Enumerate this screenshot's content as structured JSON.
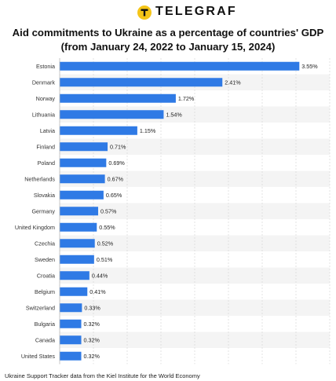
{
  "header": {
    "brand": "TELEGRAF",
    "brand_color": "#f5c518",
    "logo_icon": "telegraf-logo-icon"
  },
  "chart_data": {
    "type": "bar",
    "orientation": "horizontal",
    "title": "Aid commitments to Ukraine as a percentage of countries' GDP",
    "subtitle": "(from January 24, 2022 to January 15, 2024)",
    "xlabel": "",
    "ylabel": "",
    "categories": [
      "Estonia",
      "Denmark",
      "Norway",
      "Lithuania",
      "Latvia",
      "Finland",
      "Poland",
      "Netherlands",
      "Slovakia",
      "Germany",
      "United Kingdom",
      "Czechia",
      "Sweden",
      "Croatia",
      "Belgium",
      "Switzerland",
      "Bulgaria",
      "Canada",
      "United States"
    ],
    "values": [
      3.55,
      2.41,
      1.72,
      1.54,
      1.15,
      0.71,
      0.69,
      0.67,
      0.65,
      0.57,
      0.55,
      0.52,
      0.51,
      0.44,
      0.41,
      0.33,
      0.32,
      0.32,
      0.32
    ],
    "value_labels": [
      "3.55%",
      "2.41%",
      "1.72%",
      "1.54%",
      "1.15%",
      "0.71%",
      "0.69%",
      "0.67%",
      "0.65%",
      "0.57%",
      "0.55%",
      "0.52%",
      "0.51%",
      "0.44%",
      "0.41%",
      "0.33%",
      "0.32%",
      "0.32%",
      "0.32%"
    ],
    "xlim": [
      0,
      4
    ],
    "grid": true,
    "bar_color": "#2f7ae5"
  },
  "footer": {
    "source": "Ukraine Support Tracker data from the Kiel Institute for the World Economy"
  }
}
